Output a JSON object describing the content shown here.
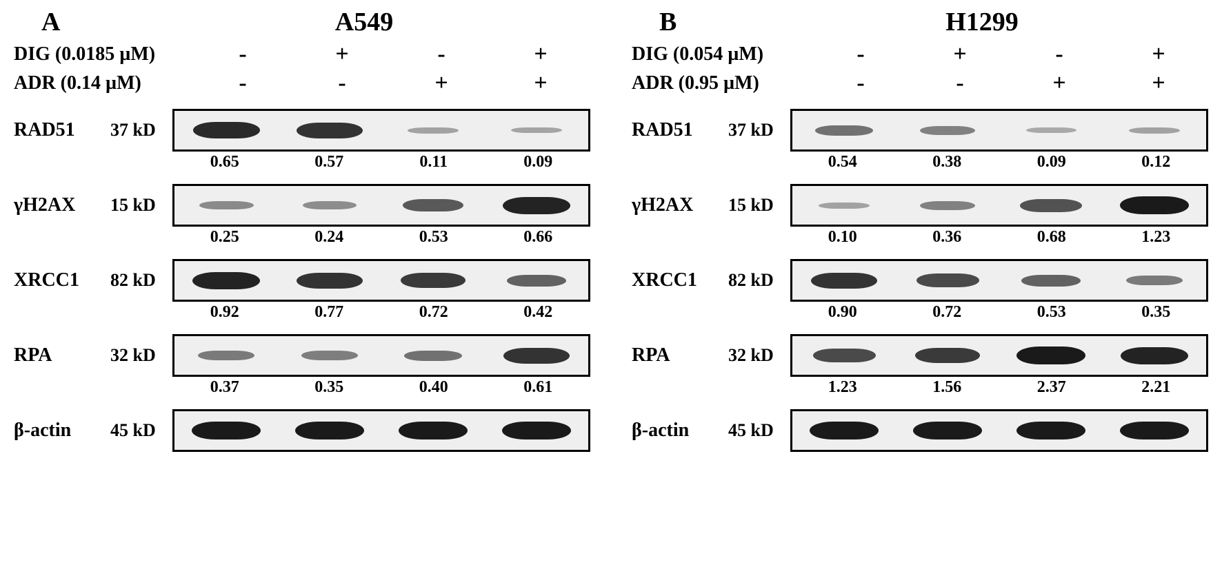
{
  "figure_type": "western-blot-panel",
  "background_color": "#ffffff",
  "text_color": "#000000",
  "font_family": "Times New Roman",
  "panel_letter_fontsize": 38,
  "cell_title_fontsize": 38,
  "treatment_label_fontsize": 28,
  "symbol_fontsize": 34,
  "protein_fontsize": 28,
  "mw_fontsize": 26,
  "quant_fontsize": 24,
  "blot_border_color": "#000000",
  "blot_background": "#efefef",
  "band_color": "#1a1a1a",
  "panels": [
    {
      "letter": "A",
      "cell_line": "A549",
      "treatments": [
        {
          "label": "DIG (0.0185 µM)",
          "symbols": [
            "-",
            "+",
            "-",
            "+"
          ]
        },
        {
          "label": "ADR (0.14 µM)",
          "symbols": [
            "-",
            "-",
            "+",
            "+"
          ]
        }
      ],
      "blots": [
        {
          "protein": "RAD51",
          "mw": "37 kD",
          "intensities": [
            0.9,
            0.85,
            0.15,
            0.13
          ],
          "quant": [
            "0.65",
            "0.57",
            "0.11",
            "0.09"
          ]
        },
        {
          "protein": "γH2AX",
          "mw": "15 kD",
          "intensities": [
            0.3,
            0.28,
            0.6,
            0.95
          ],
          "quant": [
            "0.25",
            "0.24",
            "0.53",
            "0.66"
          ]
        },
        {
          "protein": "XRCC1",
          "mw": "82 kD",
          "intensities": [
            0.95,
            0.85,
            0.8,
            0.55
          ],
          "quant": [
            "0.92",
            "0.77",
            "0.72",
            "0.42"
          ]
        },
        {
          "protein": "RPA",
          "mw": "32 kD",
          "intensities": [
            0.4,
            0.38,
            0.45,
            0.85
          ],
          "quant": [
            "0.37",
            "0.35",
            "0.40",
            "0.61"
          ]
        },
        {
          "protein": "β-actin",
          "mw": "45 kD",
          "intensities": [
            1.0,
            1.0,
            1.0,
            1.0
          ],
          "quant": null
        }
      ]
    },
    {
      "letter": "B",
      "cell_line": "H1299",
      "treatments": [
        {
          "label": "DIG (0.054 µM)",
          "symbols": [
            "-",
            "+",
            "-",
            "+"
          ]
        },
        {
          "label": "ADR (0.95 µM)",
          "symbols": [
            "-",
            "-",
            "+",
            "+"
          ]
        }
      ],
      "blots": [
        {
          "protein": "RAD51",
          "mw": "37 kD",
          "intensities": [
            0.45,
            0.35,
            0.1,
            0.15
          ],
          "quant": [
            "0.54",
            "0.38",
            "0.09",
            "0.12"
          ]
        },
        {
          "protein": "γH2AX",
          "mw": "15 kD",
          "intensities": [
            0.15,
            0.35,
            0.65,
            1.0
          ],
          "quant": [
            "0.10",
            "0.36",
            "0.68",
            "1.23"
          ]
        },
        {
          "protein": "XRCC1",
          "mw": "82 kD",
          "intensities": [
            0.85,
            0.7,
            0.55,
            0.4
          ],
          "quant": [
            "0.90",
            "0.72",
            "0.53",
            "0.35"
          ]
        },
        {
          "protein": "RPA",
          "mw": "32 kD",
          "intensities": [
            0.7,
            0.8,
            1.0,
            0.95
          ],
          "quant": [
            "1.23",
            "1.56",
            "2.37",
            "2.21"
          ]
        },
        {
          "protein": "β-actin",
          "mw": "45 kD",
          "intensities": [
            1.0,
            1.0,
            1.0,
            1.0
          ],
          "quant": null
        }
      ]
    }
  ]
}
